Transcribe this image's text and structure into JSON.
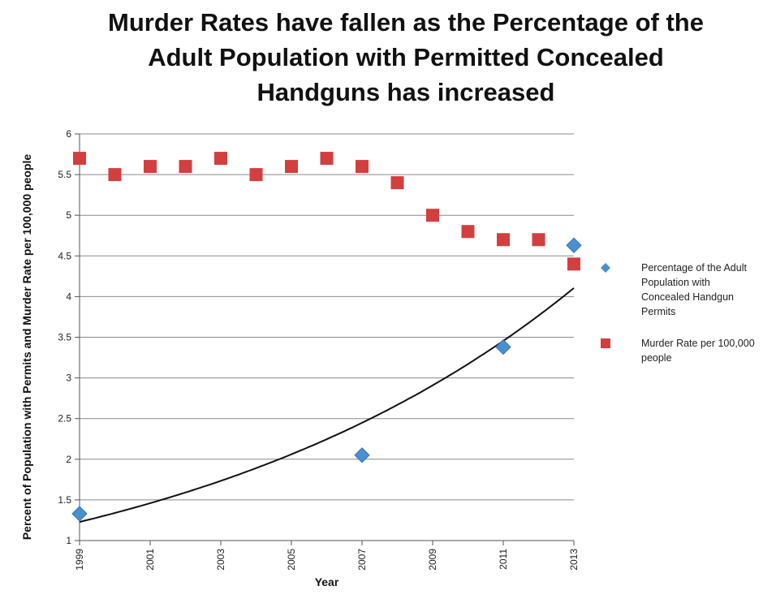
{
  "chart_data": {
    "type": "scatter",
    "title_lines": [
      "Murder Rates have fallen as the Percentage of the",
      "Adult Population with Permitted Concealed",
      "Handguns has increased"
    ],
    "xlabel": "Year",
    "ylabel": "Percent of Population with Permits and Murder Rate per 100,000 people",
    "xlim": [
      1999,
      2013
    ],
    "ylim": [
      1,
      6
    ],
    "x_ticks": [
      "1999",
      "2001",
      "2003",
      "2005",
      "2007",
      "2009",
      "2011",
      "2013"
    ],
    "y_ticks": [
      "1",
      "1.5",
      "2",
      "2.5",
      "3",
      "3.5",
      "4",
      "4.5",
      "5",
      "5.5",
      "6"
    ],
    "grid": true,
    "legend_position": "right",
    "series": [
      {
        "name": "Percentage of the Adult Population with Concealed Handgun Permits",
        "legend_lines": [
          "Percentage of the Adult",
          "Population with",
          "Concealed Handgun",
          "Permits"
        ],
        "marker": "diamond",
        "color": "#4a8fcf",
        "x": [
          1999,
          2007,
          2011,
          2013
        ],
        "y": [
          1.33,
          2.05,
          3.38,
          4.63
        ],
        "trendline": "exponential"
      },
      {
        "name": "Murder Rate per 100,000 people",
        "legend_lines": [
          "Murder Rate per 100,000",
          "people"
        ],
        "marker": "square",
        "color": "#d23f3f",
        "x": [
          1999,
          2000,
          2001,
          2002,
          2003,
          2004,
          2005,
          2006,
          2007,
          2008,
          2009,
          2010,
          2011,
          2012,
          2013
        ],
        "y": [
          5.7,
          5.5,
          5.6,
          5.6,
          5.7,
          5.5,
          5.6,
          5.7,
          5.6,
          5.4,
          5.0,
          4.8,
          4.7,
          4.7,
          4.4
        ]
      }
    ]
  }
}
